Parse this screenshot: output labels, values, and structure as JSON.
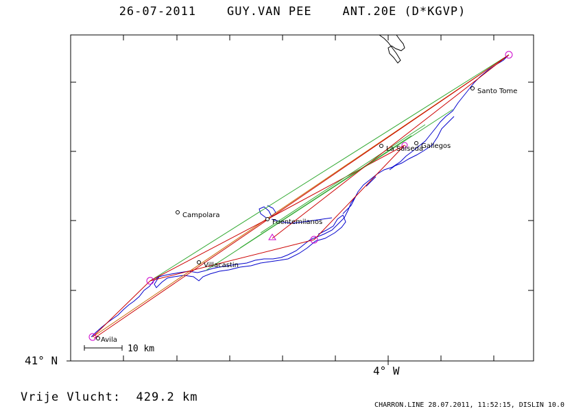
{
  "header": {
    "date": "26-07-2011",
    "pilot": "GUY.VAN PEE",
    "glider": "ANT.20E (D*KGVP)"
  },
  "axes": {
    "lat_label": "41° N",
    "lon_label": "4° W"
  },
  "scale_bar": {
    "label": "10 km"
  },
  "towns": [
    {
      "name": "Avila"
    },
    {
      "name": "Villacastin"
    },
    {
      "name": "Campolara"
    },
    {
      "name": "Fuentemilanos"
    },
    {
      "name": "La Salseda"
    },
    {
      "name": "Gallegos"
    },
    {
      "name": "Santo Tome"
    }
  ],
  "route": {
    "turnpoint_color": "#cc00cc",
    "track_color": "#0000cc",
    "leg_colors": [
      "#cc0000",
      "#cc6600",
      "#33aa33"
    ]
  },
  "footer": {
    "distance_label": "Vrije Vlucht:",
    "distance_value": "429.2 km",
    "software": "CHARRON.LINE 28.07.2011, 11:52:15, DISLIN 10.0"
  }
}
